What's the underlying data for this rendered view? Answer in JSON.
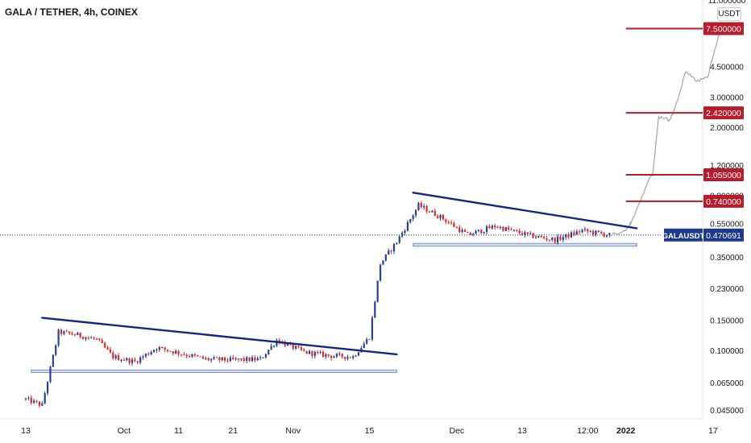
{
  "header": {
    "title": "GALA / TETHER, 4h, COINEX",
    "price_unit": "USDT"
  },
  "colors": {
    "candle_up": "#2c3e8f",
    "candle_down": "#e02828",
    "trendline": "#142680",
    "support": "#7b8fc9",
    "target_line": "#b71c2c",
    "projection": "#a9a9a9",
    "current_price_label": "#1e3a8a"
  },
  "chart_data": {
    "type": "candlestick",
    "y_scale": "log",
    "ylim": [
      0.04,
      11
    ],
    "y_axis_ticks": [
      "11.000000",
      "4.500000",
      "3.000000",
      "2.000000",
      "1.200000",
      "0.800000",
      "0.550000",
      "0.350000",
      "0.230000",
      "0.150000",
      "0.100000",
      "0.065000",
      "0.045000"
    ],
    "x_axis_ticks": [
      "13",
      "Oct",
      "11",
      "21",
      "Nov",
      "15",
      "Dec",
      "13",
      "12:00",
      "2022",
      "17"
    ],
    "current_price": {
      "symbol": "GALAUSDT",
      "value": "0.470691"
    },
    "target_levels": [
      "7.500000",
      "2.420000",
      "1.055000",
      "0.740000"
    ],
    "series": [
      {
        "type": "candlestick",
        "points": [
          {
            "t": "Sep 13",
            "close": 0.052
          },
          {
            "t": "Sep 16",
            "close": 0.048
          },
          {
            "t": "Sep 19",
            "close": 0.128
          },
          {
            "t": "Sep 22",
            "close": 0.124
          },
          {
            "t": "Sep 26",
            "close": 0.116
          },
          {
            "t": "Sep 29",
            "close": 0.092
          },
          {
            "t": "Oct 3",
            "close": 0.086
          },
          {
            "t": "Oct 7",
            "close": 0.104
          },
          {
            "t": "Oct 11",
            "close": 0.097
          },
          {
            "t": "Oct 16",
            "close": 0.089
          },
          {
            "t": "Oct 21",
            "close": 0.088
          },
          {
            "t": "Oct 26",
            "close": 0.089
          },
          {
            "t": "Oct 29",
            "close": 0.115
          },
          {
            "t": "Nov 3",
            "close": 0.098
          },
          {
            "t": "Nov 8",
            "close": 0.093
          },
          {
            "t": "Nov 12",
            "close": 0.092
          },
          {
            "t": "Nov 15",
            "close": 0.12
          },
          {
            "t": "Nov 17",
            "close": 0.32
          },
          {
            "t": "Nov 20",
            "close": 0.43
          },
          {
            "t": "Nov 24",
            "close": 0.7
          },
          {
            "t": "Nov 28",
            "close": 0.6
          },
          {
            "t": "Dec 3",
            "close": 0.47
          },
          {
            "t": "Dec 8",
            "close": 0.53
          },
          {
            "t": "Dec 14",
            "close": 0.47
          },
          {
            "t": "Dec 19",
            "close": 0.44
          },
          {
            "t": "Dec 24",
            "close": 0.5
          },
          {
            "t": "Dec 29",
            "close": 0.47
          }
        ]
      },
      {
        "type": "line",
        "points": [
          {
            "t": "Dec 29",
            "y": 0.47
          },
          {
            "t": "Jan 1",
            "y": 0.5
          },
          {
            "t": "Jan 2",
            "y": 0.56
          },
          {
            "t": "Jan 4",
            "y": 0.8
          },
          {
            "t": "Jan 6",
            "y": 1.1
          },
          {
            "t": "Jan 7",
            "y": 2.3
          },
          {
            "t": "Jan 9",
            "y": 2.2
          },
          {
            "t": "Jan 10",
            "y": 2.6
          },
          {
            "t": "Jan 12",
            "y": 4.2
          },
          {
            "t": "Jan 14",
            "y": 3.7
          },
          {
            "t": "Jan 16",
            "y": 3.9
          },
          {
            "t": "Jan 18",
            "y": 6.8
          },
          {
            "t": "Jan 19",
            "y": 7.5
          }
        ]
      }
    ],
    "annotations": {
      "trendlines": [
        {
          "from": {
            "t": "Sep 16",
            "y": 0.155
          },
          "to": {
            "t": "Nov 20",
            "y": 0.095
          }
        },
        {
          "from": {
            "t": "Nov 23",
            "y": 0.83
          },
          "to": {
            "t": "Jan 3",
            "y": 0.515
          }
        }
      ],
      "support_zones": [
        {
          "from": "Sep 14",
          "to": "Nov 20",
          "low": 0.0745,
          "high": 0.077
        },
        {
          "from": "Nov 23",
          "to": "Jan 3",
          "low": 0.405,
          "high": 0.42
        }
      ],
      "target_lines_from": "Jan 1"
    }
  }
}
